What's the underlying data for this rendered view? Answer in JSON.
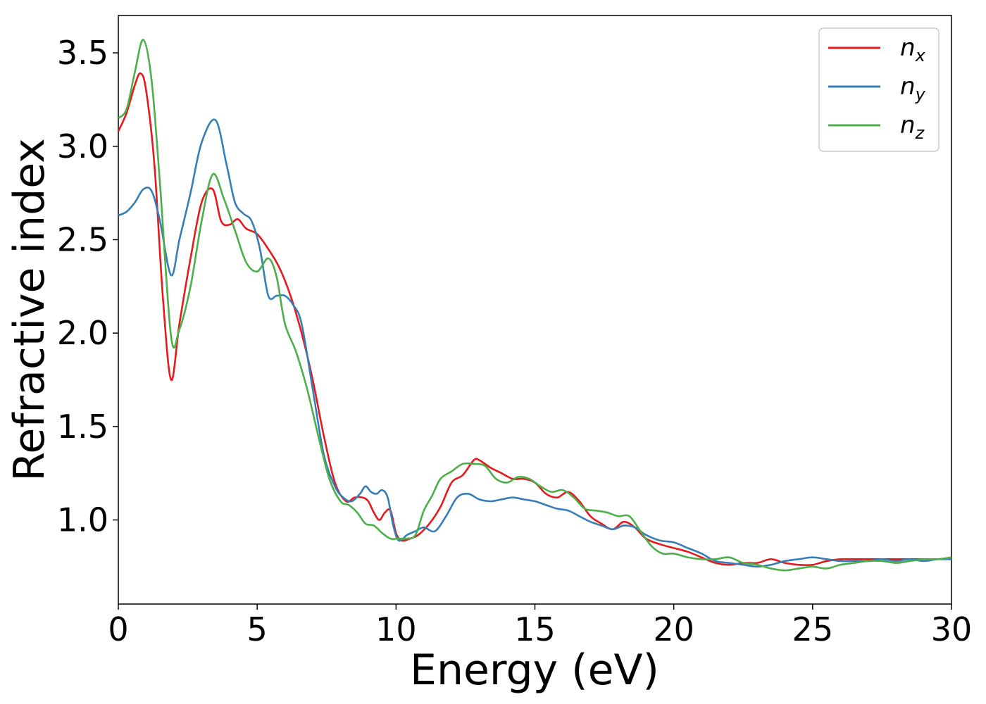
{
  "chart_data": {
    "type": "line",
    "xlabel": "Energy (eV)",
    "ylabel": "Refractive index",
    "xlim": [
      0,
      30
    ],
    "ylim": [
      0.55,
      3.7
    ],
    "xticks": [
      "0",
      "5",
      "10",
      "15",
      "20",
      "25",
      "30"
    ],
    "xtick_values": [
      0,
      5,
      10,
      15,
      20,
      25,
      30
    ],
    "yticks": [
      "1.0",
      "1.5",
      "2.0",
      "2.5",
      "3.0",
      "3.5"
    ],
    "ytick_values": [
      1.0,
      1.5,
      2.0,
      2.5,
      3.0,
      3.5
    ],
    "grid": false,
    "legend_position": "top-right",
    "series": [
      {
        "name": "n",
        "subscript": "x",
        "color": "#e41a1c",
        "x": [
          0,
          0.3,
          0.6,
          0.8,
          1.0,
          1.3,
          1.6,
          1.9,
          2.2,
          2.6,
          3.0,
          3.4,
          3.7,
          4.0,
          4.3,
          4.6,
          5.0,
          5.4,
          5.8,
          6.2,
          6.6,
          7.0,
          7.4,
          7.8,
          8.2,
          8.5,
          8.8,
          9.0,
          9.2,
          9.4,
          9.6,
          9.8,
          10.0,
          10.2,
          10.5,
          10.8,
          11.2,
          11.6,
          12.0,
          12.4,
          12.8,
          13.0,
          13.4,
          13.8,
          14.2,
          14.6,
          15.0,
          15.4,
          15.8,
          16.2,
          16.6,
          17.0,
          17.4,
          17.8,
          18.2,
          18.6,
          19.0,
          19.5,
          20.0,
          20.5,
          21.0,
          21.5,
          22.0,
          22.5,
          23.0,
          23.5,
          24.0,
          24.5,
          25.0,
          25.5,
          26.0,
          26.5,
          27.0,
          27.5,
          28.0,
          28.5,
          29.0,
          29.5,
          30.0
        ],
        "y": [
          3.08,
          3.18,
          3.33,
          3.39,
          3.3,
          2.9,
          2.2,
          1.75,
          2.05,
          2.4,
          2.7,
          2.77,
          2.6,
          2.58,
          2.61,
          2.56,
          2.53,
          2.45,
          2.35,
          2.2,
          2.0,
          1.75,
          1.45,
          1.2,
          1.1,
          1.12,
          1.12,
          1.1,
          1.04,
          1.0,
          1.04,
          1.05,
          0.93,
          0.89,
          0.9,
          0.92,
          0.98,
          1.07,
          1.2,
          1.24,
          1.32,
          1.32,
          1.28,
          1.25,
          1.22,
          1.22,
          1.2,
          1.14,
          1.12,
          1.15,
          1.1,
          1.02,
          0.98,
          0.95,
          0.99,
          0.96,
          0.9,
          0.87,
          0.85,
          0.83,
          0.8,
          0.77,
          0.76,
          0.77,
          0.77,
          0.79,
          0.77,
          0.76,
          0.76,
          0.78,
          0.79,
          0.79,
          0.79,
          0.79,
          0.79,
          0.79,
          0.79,
          0.79,
          0.79
        ]
      },
      {
        "name": "n",
        "subscript": "y",
        "color": "#377eb8",
        "x": [
          0,
          0.3,
          0.6,
          0.9,
          1.2,
          1.5,
          1.9,
          2.2,
          2.6,
          3.0,
          3.5,
          3.9,
          4.2,
          4.5,
          4.8,
          5.1,
          5.4,
          5.7,
          6.0,
          6.3,
          6.6,
          7.0,
          7.4,
          7.8,
          8.1,
          8.4,
          8.7,
          8.9,
          9.1,
          9.3,
          9.5,
          9.7,
          9.9,
          10.1,
          10.4,
          10.7,
          11.0,
          11.4,
          11.8,
          12.2,
          12.6,
          13.0,
          13.4,
          13.8,
          14.2,
          14.6,
          15.0,
          15.4,
          15.8,
          16.2,
          16.6,
          17.0,
          17.4,
          17.8,
          18.2,
          18.6,
          19.0,
          19.5,
          20.0,
          20.5,
          21.0,
          21.5,
          22.0,
          22.5,
          23.0,
          23.5,
          24.0,
          24.5,
          25.0,
          25.5,
          26.0,
          26.5,
          27.0,
          27.5,
          28.0,
          28.5,
          29.0,
          29.5,
          30.0
        ],
        "y": [
          2.63,
          2.65,
          2.7,
          2.77,
          2.76,
          2.6,
          2.31,
          2.5,
          2.75,
          3.02,
          3.14,
          2.9,
          2.7,
          2.64,
          2.6,
          2.45,
          2.2,
          2.2,
          2.2,
          2.15,
          2.05,
          1.7,
          1.35,
          1.18,
          1.12,
          1.1,
          1.14,
          1.18,
          1.15,
          1.14,
          1.16,
          1.12,
          0.97,
          0.89,
          0.92,
          0.94,
          0.96,
          0.94,
          1.02,
          1.12,
          1.14,
          1.11,
          1.1,
          1.11,
          1.12,
          1.11,
          1.1,
          1.08,
          1.06,
          1.05,
          1.02,
          0.99,
          0.97,
          0.95,
          0.97,
          0.96,
          0.92,
          0.89,
          0.88,
          0.85,
          0.82,
          0.78,
          0.77,
          0.76,
          0.75,
          0.76,
          0.78,
          0.79,
          0.8,
          0.79,
          0.78,
          0.78,
          0.78,
          0.79,
          0.78,
          0.79,
          0.78,
          0.79,
          0.79
        ]
      },
      {
        "name": "n",
        "subscript": "z",
        "color": "#4daf4a",
        "x": [
          0,
          0.3,
          0.6,
          0.9,
          1.2,
          1.5,
          1.9,
          2.2,
          2.6,
          3.0,
          3.4,
          3.8,
          4.2,
          4.6,
          5.0,
          5.4,
          5.7,
          6.0,
          6.4,
          6.8,
          7.2,
          7.6,
          8.0,
          8.3,
          8.6,
          8.9,
          9.2,
          9.5,
          9.8,
          10.1,
          10.4,
          10.7,
          11.0,
          11.3,
          11.6,
          12.0,
          12.4,
          12.8,
          13.2,
          13.6,
          14.0,
          14.4,
          14.8,
          15.2,
          15.6,
          16.0,
          16.4,
          16.8,
          17.2,
          17.6,
          18.0,
          18.4,
          18.8,
          19.2,
          19.6,
          20.0,
          20.5,
          21.0,
          21.5,
          22.0,
          22.5,
          23.0,
          23.5,
          24.0,
          24.5,
          25.0,
          25.5,
          26.0,
          26.5,
          27.0,
          27.5,
          28.0,
          28.5,
          29.0,
          29.5,
          30.0
        ],
        "y": [
          3.15,
          3.2,
          3.4,
          3.57,
          3.35,
          2.8,
          1.98,
          2.02,
          2.25,
          2.6,
          2.85,
          2.72,
          2.55,
          2.38,
          2.33,
          2.4,
          2.3,
          2.05,
          1.9,
          1.7,
          1.45,
          1.22,
          1.1,
          1.08,
          1.04,
          0.98,
          0.97,
          0.93,
          0.9,
          0.9,
          0.9,
          0.92,
          1.05,
          1.13,
          1.22,
          1.26,
          1.3,
          1.3,
          1.29,
          1.22,
          1.2,
          1.23,
          1.22,
          1.18,
          1.15,
          1.16,
          1.12,
          1.06,
          1.05,
          1.04,
          1.02,
          1.02,
          0.94,
          0.86,
          0.82,
          0.82,
          0.8,
          0.79,
          0.79,
          0.8,
          0.77,
          0.76,
          0.74,
          0.73,
          0.74,
          0.75,
          0.74,
          0.76,
          0.77,
          0.78,
          0.78,
          0.77,
          0.78,
          0.79,
          0.79,
          0.8
        ]
      }
    ]
  }
}
